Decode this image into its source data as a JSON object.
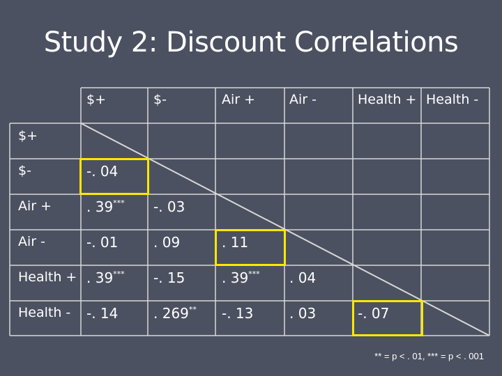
{
  "title": "Study 2: Discount Correlations",
  "columns": [
    "$+",
    "$-",
    "Air +",
    "Air -",
    "Health +",
    "Health -"
  ],
  "rows": [
    {
      "label": "$+",
      "cells": []
    },
    {
      "label": "$-",
      "cells": [
        {
          "v": "-. 04"
        }
      ]
    },
    {
      "label": "Air +",
      "cells": [
        {
          "v": ". 39",
          "sig": "***"
        },
        {
          "v": "-. 03"
        }
      ]
    },
    {
      "label": "Air -",
      "cells": [
        {
          "v": "-. 01"
        },
        {
          "v": ". 09"
        },
        {
          "v": ". 11"
        }
      ]
    },
    {
      "label": "Health +",
      "cells": [
        {
          "v": ". 39",
          "sig": "***"
        },
        {
          "v": "-. 15"
        },
        {
          "v": ". 39",
          "sig": "***"
        },
        {
          "v": ". 04"
        }
      ]
    },
    {
      "label": "Health -",
      "cells": [
        {
          "v": "-. 14"
        },
        {
          "v": ". 269",
          "sig": "**"
        },
        {
          "v": "-. 13"
        },
        {
          "v": ". 03"
        },
        {
          "v": "-. 07"
        }
      ]
    }
  ],
  "highlighted": [
    [
      1,
      0
    ],
    [
      3,
      2
    ],
    [
      5,
      4
    ]
  ],
  "footnote": "** = p < . 01, *** = p < . 001",
  "colors": {
    "background": "#4c5161",
    "line": "#d8d8d8",
    "highlight": "#ffe800",
    "text": "#ffffff"
  }
}
